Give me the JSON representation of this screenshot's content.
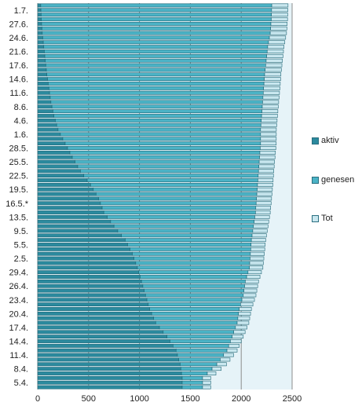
{
  "chart_data": {
    "type": "bar",
    "orientation": "horizontal",
    "stacked": true,
    "xlim": [
      0,
      2500
    ],
    "x_ticks": [
      0,
      500,
      1000,
      1500,
      2000,
      2500
    ],
    "grid": "vertical",
    "legend_position": "right",
    "categories": [
      "1.7.",
      "27.6.",
      "24.6.",
      "21.6.",
      "17.6.",
      "14.6.",
      "11.6.",
      "8.6.",
      "4.6.",
      "1.6.",
      "28.5.",
      "25.5.",
      "22.5.",
      "19.5.",
      "16.5.*",
      "13.5.",
      "9.5.",
      "5.5.",
      "2.5.",
      "29.4.",
      "26.4.",
      "23.4.",
      "20.4.",
      "17.4.",
      "14.4.",
      "11.4.",
      "8.4.",
      "5.4."
    ],
    "series": [
      {
        "name": "aktiv",
        "color": "#2b8a9e",
        "values": [
          30,
          35,
          45,
          60,
          75,
          90,
          110,
          130,
          160,
          200,
          270,
          340,
          420,
          520,
          600,
          650,
          750,
          860,
          930,
          980,
          1020,
          1060,
          1100,
          1160,
          1270,
          1360,
          1400,
          1420
        ]
      },
      {
        "name": "genesen",
        "color": "#4bb3c6",
        "values": [
          2270,
          2260,
          2240,
          2200,
          2170,
          2140,
          2110,
          2080,
          2040,
          1990,
          1920,
          1840,
          1750,
          1640,
          1550,
          1490,
          1370,
          1240,
          1160,
          1100,
          1020,
          960,
          880,
          800,
          640,
          500,
          360,
          200
        ]
      },
      {
        "name": "Tot",
        "color": "#c9e7ef",
        "values": [
          160,
          160,
          160,
          160,
          160,
          160,
          160,
          158,
          156,
          155,
          154,
          152,
          150,
          150,
          148,
          145,
          143,
          140,
          137,
          133,
          130,
          125,
          120,
          115,
          110,
          100,
          95,
          80
        ]
      }
    ]
  },
  "legend": {
    "aktiv": "aktiv",
    "genesen": "genesen",
    "tot": "Tot"
  },
  "colors": {
    "plot_background": "#e6f3f8",
    "grid": "#8c8c8c"
  }
}
